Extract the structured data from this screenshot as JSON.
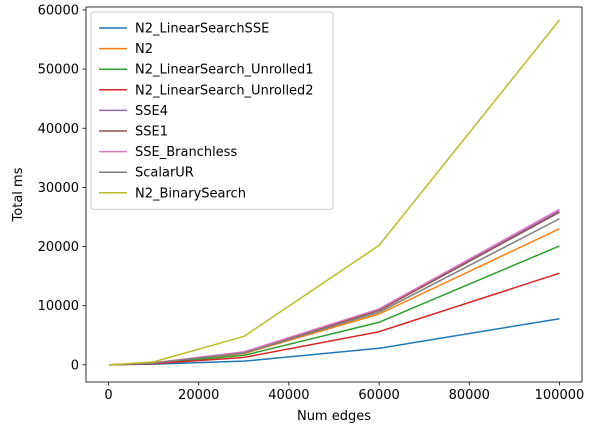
{
  "chart_data": {
    "type": "line",
    "title": "",
    "xlabel": "Num edges",
    "ylabel": "Total ms",
    "xlim": [
      -5000,
      105000
    ],
    "ylim": [
      -2900,
      60500
    ],
    "xticks": [
      0,
      20000,
      40000,
      60000,
      80000,
      100000
    ],
    "yticks": [
      0,
      10000,
      20000,
      30000,
      40000,
      50000,
      60000
    ],
    "grid": false,
    "legend_position": "top-left",
    "x": [
      100,
      10000,
      30000,
      60000,
      100000
    ],
    "series": [
      {
        "name": "N2_LinearSearchSSE",
        "color": "#1f77b4",
        "values": [
          0,
          130,
          620,
          2800,
          7800
        ]
      },
      {
        "name": "N2",
        "color": "#ff7f0e",
        "values": [
          0,
          300,
          1900,
          8600,
          23000
        ]
      },
      {
        "name": "N2_LinearSearch_Unrolled1",
        "color": "#2ca02c",
        "values": [
          0,
          260,
          1600,
          7200,
          20100
        ]
      },
      {
        "name": "N2_LinearSearch_Unrolled2",
        "color": "#d62728",
        "values": [
          0,
          200,
          1250,
          5600,
          15500
        ]
      },
      {
        "name": "SSE4",
        "color": "#9467bd",
        "values": [
          0,
          330,
          2150,
          9300,
          26000
        ]
      },
      {
        "name": "SSE1",
        "color": "#8c564b",
        "values": [
          0,
          320,
          2100,
          9200,
          25800
        ]
      },
      {
        "name": "SSE_Branchless",
        "color": "#e377c2",
        "values": [
          0,
          340,
          2200,
          9450,
          26300
        ]
      },
      {
        "name": "ScalarUR",
        "color": "#7f7f7f",
        "values": [
          0,
          310,
          2000,
          8900,
          24700
        ]
      },
      {
        "name": "N2_BinarySearch",
        "color": "#bcbd22",
        "values": [
          0,
          500,
          4800,
          20200,
          58300
        ]
      }
    ]
  }
}
